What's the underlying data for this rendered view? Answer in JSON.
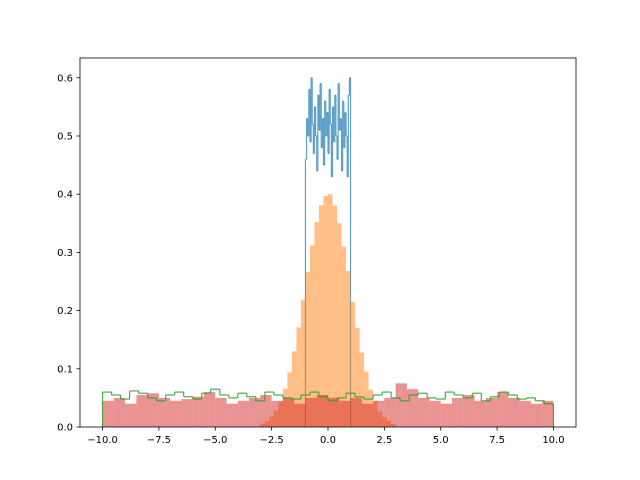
{
  "chart_data": {
    "type": "histogram",
    "xlim": [
      -11,
      11
    ],
    "ylim": [
      0,
      0.634
    ],
    "xticks": [
      {
        "value": -10,
        "label": "−10.0"
      },
      {
        "value": -7.5,
        "label": "−7.5"
      },
      {
        "value": -5,
        "label": "−5.0"
      },
      {
        "value": -2.5,
        "label": "−2.5"
      },
      {
        "value": 0,
        "label": "0.0"
      },
      2.5,
      {
        "value": 5,
        "label": "5.0"
      },
      7.5,
      {
        "value": 10,
        "label": "10.0"
      }
    ],
    "yticks": [
      {
        "value": 0,
        "label": "0.0"
      },
      0.1,
      0.2,
      0.3,
      0.4,
      0.5,
      0.6
    ],
    "series": [
      {
        "histtype": "step",
        "color": "#1f77b4",
        "alpha": 0.7,
        "bins": [
          -1,
          -0.95,
          -0.9,
          -0.85,
          -0.8,
          -0.75,
          -0.7,
          -0.65,
          -0.6,
          -0.55,
          -0.5,
          -0.45,
          -0.4,
          -0.35,
          -0.3,
          -0.25,
          -0.2,
          -0.15,
          -0.1,
          -0.05,
          0,
          0.05,
          0.1,
          0.15,
          0.2,
          0.25,
          0.3,
          0.35,
          0.4,
          0.45,
          0.5,
          0.55,
          0.6,
          0.65,
          0.7,
          0.75,
          0.8,
          0.85,
          0.9,
          0.95,
          1
        ],
        "values": [
          0.46,
          0.53,
          0.5,
          0.58,
          0.49,
          0.6,
          0.52,
          0.47,
          0.55,
          0.5,
          0.44,
          0.57,
          0.51,
          0.59,
          0.48,
          0.53,
          0.45,
          0.56,
          0.5,
          0.54,
          0.47,
          0.58,
          0.52,
          0.43,
          0.55,
          0.49,
          0.57,
          0.5,
          0.46,
          0.59,
          0.51,
          0.53,
          0.44,
          0.56,
          0.48,
          0.54,
          0.5,
          0.43,
          0.57,
          0.6
        ]
      },
      {
        "histtype": "bar",
        "color": "#ff7f0e",
        "alpha": 0.5,
        "bins": [
          -3,
          -2.8,
          -2.6,
          -2.4,
          -2.2,
          -2,
          -1.8,
          -1.6,
          -1.4,
          -1.2,
          -1,
          -0.8,
          -0.6,
          -0.4,
          -0.2,
          0,
          0.2,
          0.4,
          0.6,
          0.8,
          1,
          1.2,
          1.4,
          1.6,
          1.8,
          2,
          2.2,
          2.4,
          2.6,
          2.8,
          3
        ],
        "values": [
          0.006,
          0.01,
          0.018,
          0.028,
          0.044,
          0.066,
          0.094,
          0.13,
          0.171,
          0.218,
          0.266,
          0.312,
          0.352,
          0.381,
          0.397,
          0.4,
          0.38,
          0.35,
          0.31,
          0.268,
          0.215,
          0.17,
          0.128,
          0.095,
          0.064,
          0.045,
          0.027,
          0.017,
          0.011,
          0.005
        ]
      },
      {
        "histtype": "bar",
        "color": "#d62728",
        "alpha": 0.5,
        "bins": [
          -10,
          -9.5,
          -9,
          -8.5,
          -8,
          -7.5,
          -7,
          -6.5,
          -6,
          -5.5,
          -5,
          -4.5,
          -4,
          -3.5,
          -3,
          -2.5,
          -2,
          -1.5,
          -1,
          -0.5,
          0,
          0.5,
          1,
          1.5,
          2,
          2.5,
          3,
          3.5,
          4,
          4.5,
          5,
          5.5,
          6,
          6.5,
          7,
          7.5,
          8,
          8.5,
          9,
          9.5,
          10
        ],
        "values": [
          0.045,
          0.05,
          0.04,
          0.055,
          0.058,
          0.05,
          0.045,
          0.048,
          0.052,
          0.06,
          0.05,
          0.04,
          0.045,
          0.05,
          0.055,
          0.045,
          0.05,
          0.04,
          0.05,
          0.055,
          0.05,
          0.045,
          0.05,
          0.04,
          0.045,
          0.05,
          0.075,
          0.065,
          0.05,
          0.045,
          0.04,
          0.05,
          0.055,
          0.045,
          0.05,
          0.06,
          0.05,
          0.045,
          0.04,
          0.045
        ]
      },
      {
        "histtype": "step",
        "color": "#2ca02c",
        "alpha": 0.85,
        "bins": [
          -10,
          -9.6,
          -9.2,
          -8.8,
          -8.4,
          -8,
          -7.6,
          -7.2,
          -6.8,
          -6.4,
          -6,
          -5.6,
          -5.2,
          -4.8,
          -4.4,
          -4,
          -3.6,
          -3.2,
          -2.8,
          -2.4,
          -2,
          -1.6,
          -1.2,
          -0.8,
          -0.4,
          0,
          0.4,
          0.8,
          1.2,
          1.6,
          2,
          2.4,
          2.8,
          3.2,
          3.6,
          4,
          4.4,
          4.8,
          5.2,
          5.6,
          6,
          6.4,
          6.8,
          7.2,
          7.6,
          8,
          8.4,
          8.8,
          9.2,
          9.6,
          10
        ],
        "values": [
          0.06,
          0.055,
          0.048,
          0.062,
          0.058,
          0.05,
          0.045,
          0.055,
          0.06,
          0.052,
          0.048,
          0.058,
          0.065,
          0.055,
          0.05,
          0.058,
          0.052,
          0.045,
          0.06,
          0.055,
          0.05,
          0.048,
          0.055,
          0.06,
          0.052,
          0.045,
          0.05,
          0.058,
          0.052,
          0.048,
          0.055,
          0.06,
          0.05,
          0.045,
          0.055,
          0.058,
          0.05,
          0.048,
          0.06,
          0.055,
          0.05,
          0.058,
          0.045,
          0.052,
          0.06,
          0.055,
          0.048,
          0.05,
          0.045,
          0.04
        ]
      }
    ]
  }
}
